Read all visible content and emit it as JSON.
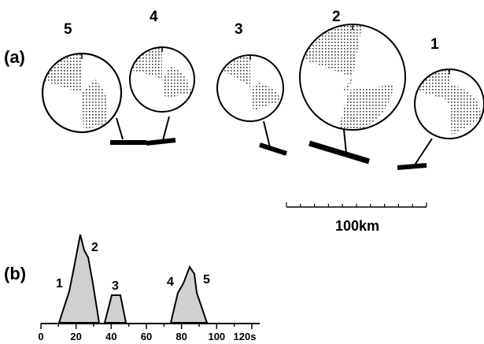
{
  "panel_a": {
    "label": "(a)",
    "events": [
      {
        "number": "5"
      },
      {
        "number": "4"
      },
      {
        "number": "3"
      },
      {
        "number": "2"
      },
      {
        "number": "1"
      }
    ],
    "scale_bar": {
      "label": "100km",
      "value_km": 100
    }
  },
  "panel_b": {
    "label": "(b)",
    "x_axis": {
      "unit": "s",
      "min": 0,
      "max": 120,
      "major_ticks": [
        0,
        20,
        40,
        60,
        80,
        100,
        120
      ],
      "tick_labels": [
        "0",
        "20",
        "40",
        "60",
        "80",
        "100",
        "120s"
      ]
    },
    "peaks": [
      {
        "label": "1"
      },
      {
        "label": "2"
      },
      {
        "label": "3"
      },
      {
        "label": "4"
      },
      {
        "label": "5"
      }
    ]
  },
  "colors": {
    "ink": "#000000",
    "fill": "#d0d0d0",
    "dots": "#333333",
    "background": "#ffffff"
  }
}
